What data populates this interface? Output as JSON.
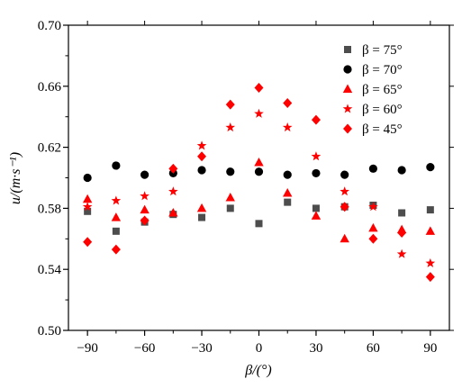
{
  "chart_data": {
    "type": "scatter",
    "xlabel": "β/(°)",
    "ylabel": "u/(m·s⁻¹)",
    "xlim": [
      -100,
      100
    ],
    "ylim": [
      0.5,
      0.7
    ],
    "x_ticks": [
      -90,
      -60,
      -30,
      0,
      30,
      60,
      90
    ],
    "x_tick_labels": [
      "−90",
      "−60",
      "−30",
      "0",
      "30",
      "60",
      "90"
    ],
    "y_ticks": [
      0.5,
      0.54,
      0.58,
      0.62,
      0.66,
      0.7
    ],
    "y_tick_labels": [
      "0.50",
      "0.54",
      "0.58",
      "0.62",
      "0.66",
      "0.70"
    ],
    "legend_position": "top-right",
    "series": [
      {
        "name": "β = 75°",
        "marker": "square",
        "color": "#4d4d4d",
        "points": [
          [
            -90,
            0.578
          ],
          [
            -75,
            0.565
          ],
          [
            -60,
            0.571
          ],
          [
            -45,
            0.576
          ],
          [
            -30,
            0.574
          ],
          [
            -15,
            0.58
          ],
          [
            0,
            0.57
          ],
          [
            15,
            0.584
          ],
          [
            30,
            0.58
          ],
          [
            45,
            0.581
          ],
          [
            60,
            0.582
          ],
          [
            75,
            0.577
          ],
          [
            90,
            0.579
          ]
        ]
      },
      {
        "name": "β = 70°",
        "marker": "circle",
        "color": "#000000",
        "points": [
          [
            -90,
            0.6
          ],
          [
            -75,
            0.608
          ],
          [
            -60,
            0.602
          ],
          [
            -45,
            0.603
          ],
          [
            -30,
            0.605
          ],
          [
            -15,
            0.604
          ],
          [
            0,
            0.604
          ],
          [
            15,
            0.602
          ],
          [
            30,
            0.603
          ],
          [
            45,
            0.602
          ],
          [
            60,
            0.606
          ],
          [
            75,
            0.605
          ],
          [
            90,
            0.607
          ]
        ]
      },
      {
        "name": "β = 65°",
        "marker": "triangle",
        "color": "#ff0000",
        "points": [
          [
            -90,
            0.586
          ],
          [
            -75,
            0.574
          ],
          [
            -60,
            0.579
          ],
          [
            -45,
            0.577
          ],
          [
            -30,
            0.58
          ],
          [
            -15,
            0.587
          ],
          [
            0,
            0.61
          ],
          [
            15,
            0.59
          ],
          [
            30,
            0.575
          ],
          [
            45,
            0.56
          ],
          [
            60,
            0.567
          ],
          [
            75,
            0.566
          ],
          [
            90,
            0.565
          ]
        ]
      },
      {
        "name": "β = 60°",
        "marker": "star",
        "color": "#ff0000",
        "points": [
          [
            -90,
            0.581
          ],
          [
            -75,
            0.585
          ],
          [
            -60,
            0.588
          ],
          [
            -45,
            0.591
          ],
          [
            -30,
            0.621
          ],
          [
            -15,
            0.633
          ],
          [
            0,
            0.642
          ],
          [
            15,
            0.633
          ],
          [
            30,
            0.614
          ],
          [
            45,
            0.591
          ],
          [
            60,
            0.581
          ],
          [
            75,
            0.55
          ],
          [
            90,
            0.544
          ]
        ]
      },
      {
        "name": "β = 45°",
        "marker": "diamond",
        "color": "#ff0000",
        "points": [
          [
            -90,
            0.558
          ],
          [
            -75,
            0.553
          ],
          [
            -60,
            0.572
          ],
          [
            -45,
            0.606
          ],
          [
            -30,
            0.614
          ],
          [
            -15,
            0.648
          ],
          [
            0,
            0.659
          ],
          [
            15,
            0.649
          ],
          [
            30,
            0.638
          ],
          [
            45,
            0.581
          ],
          [
            60,
            0.56
          ],
          [
            75,
            0.564
          ],
          [
            90,
            0.535
          ]
        ]
      }
    ]
  }
}
